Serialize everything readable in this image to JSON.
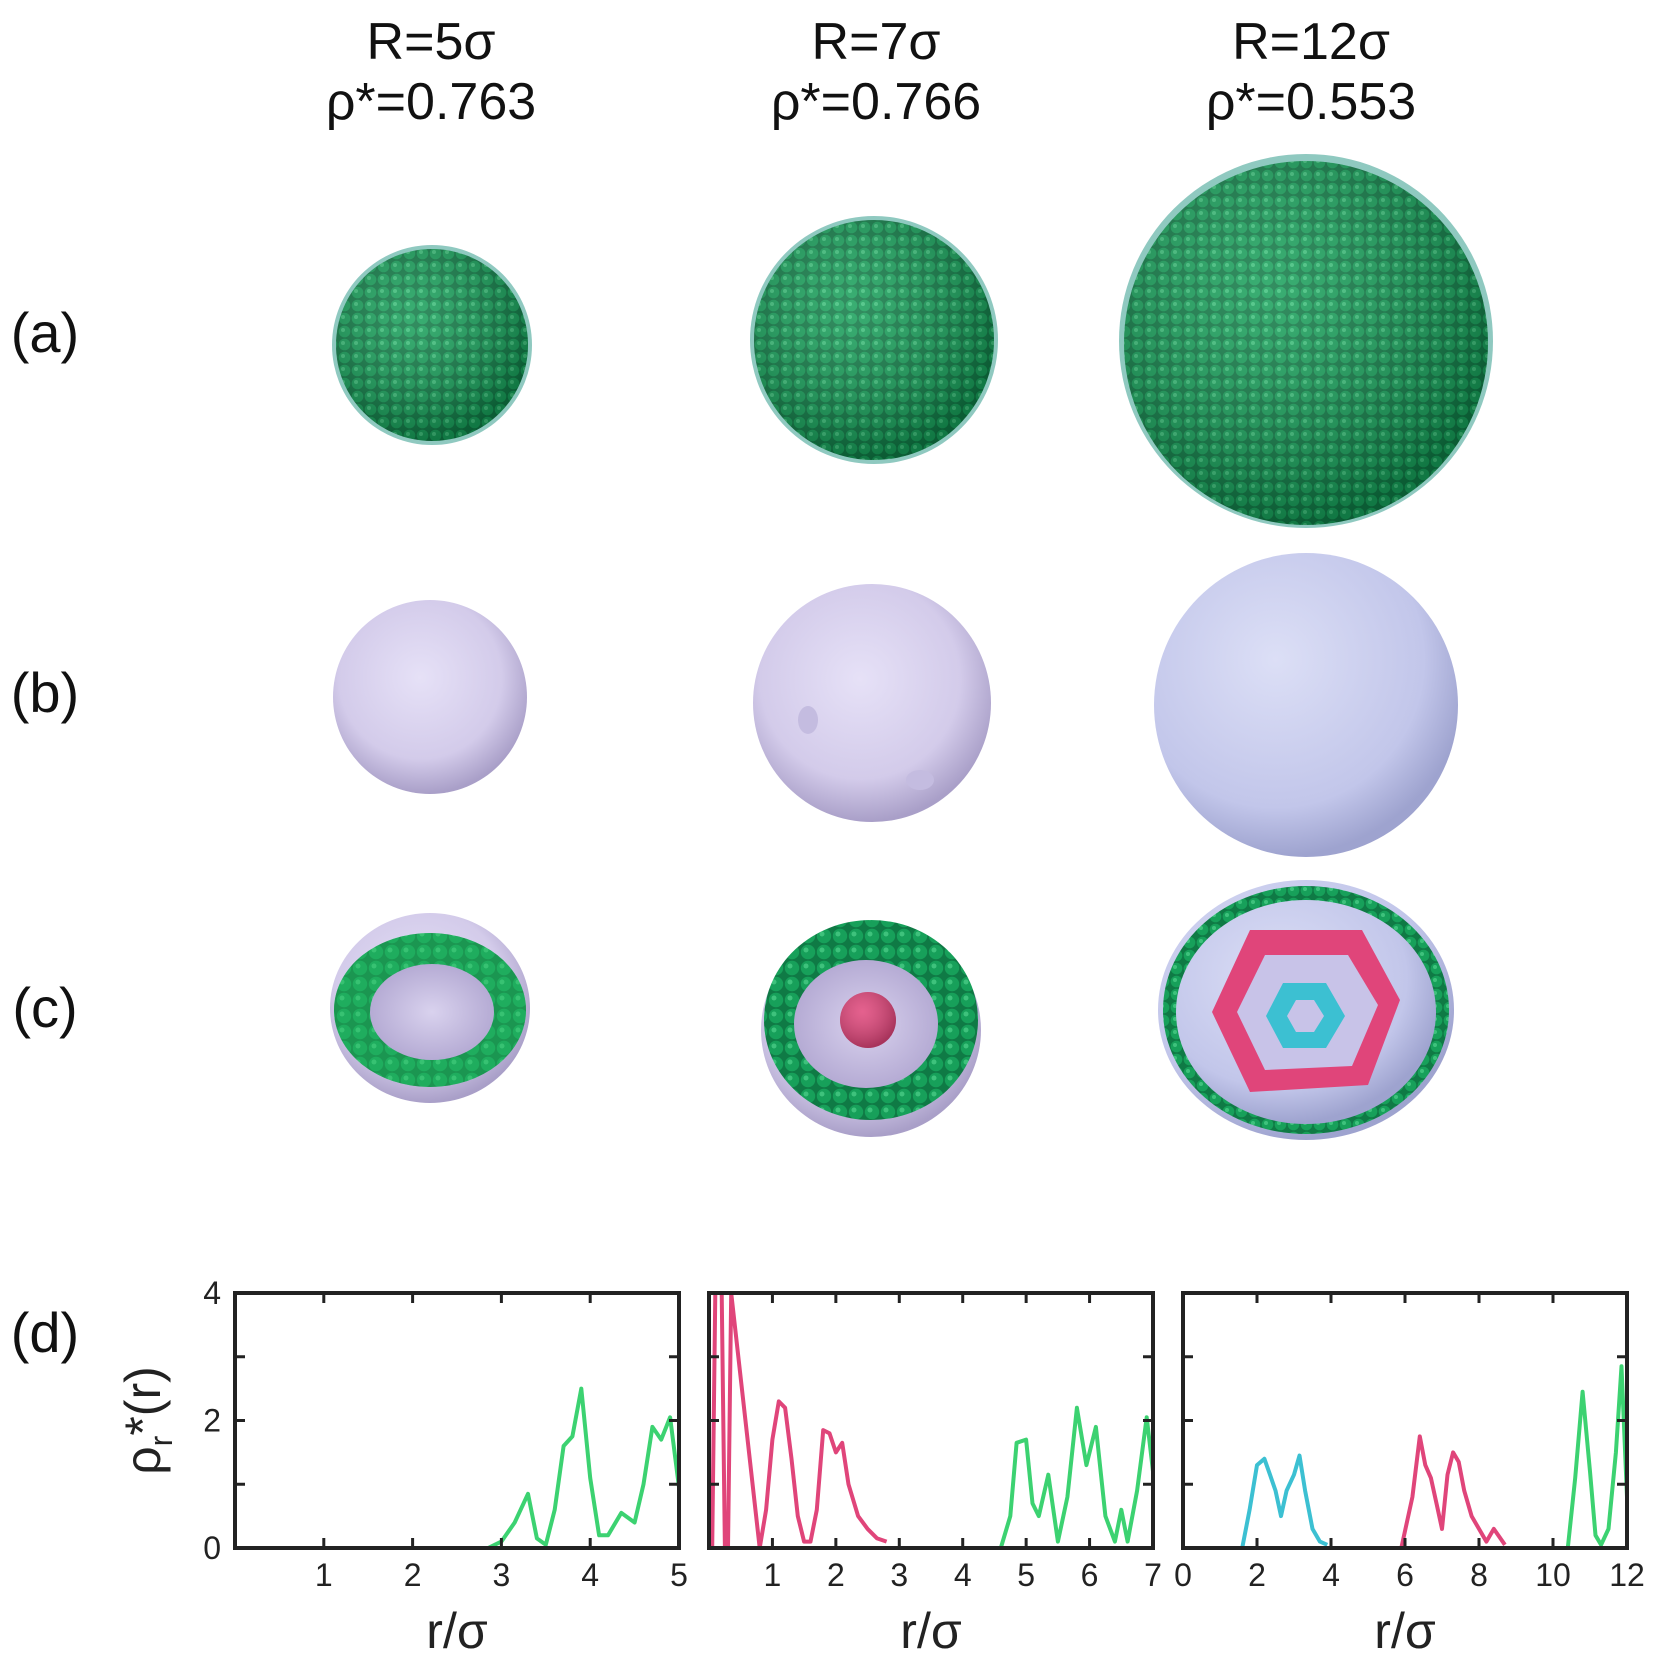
{
  "columns": [
    {
      "radius_label": "R=5σ",
      "density_label": "ρ*=0.763"
    },
    {
      "radius_label": "R=7σ",
      "density_label": "ρ*=0.766"
    },
    {
      "radius_label": "R=12σ",
      "density_label": "ρ*=0.553"
    }
  ],
  "row_labels": {
    "a": "(a)",
    "b": "(b)",
    "c": "(c)",
    "d": "(d)"
  },
  "colors": {
    "outer_shell": "#1db94f",
    "middle_shell": "#e0457a",
    "inner_shell": "#3cc0d2",
    "particle_green": "#15904f",
    "surface_lavender": "#d8d2ee",
    "surface_blue": "#c6cbec"
  },
  "chart_data": [
    {
      "type": "line",
      "xlabel": "r/σ",
      "ylabel_main": "ρ",
      "ylabel_sub": "r",
      "ylabel_suffix": "*(r)",
      "xlim": [
        0,
        5
      ],
      "ylim": [
        0,
        4
      ],
      "xticks": [
        "1",
        "2",
        "3",
        "4",
        "5"
      ],
      "yticks": [
        "0",
        "2",
        "4"
      ],
      "series": [
        {
          "color": "#3cd271",
          "x": [
            2.85,
            3.0,
            3.15,
            3.3,
            3.4,
            3.5,
            3.6,
            3.7,
            3.8,
            3.9,
            4.0,
            4.1,
            4.2,
            4.35,
            4.5,
            4.6,
            4.7,
            4.8,
            4.9,
            5.0
          ],
          "y": [
            0,
            0.1,
            0.4,
            0.85,
            0.15,
            0.05,
            0.6,
            1.6,
            1.75,
            2.5,
            1.1,
            0.2,
            0.2,
            0.55,
            0.4,
            1.0,
            1.9,
            1.7,
            2.05,
            0.95
          ]
        }
      ]
    },
    {
      "type": "line",
      "xlabel": "r/σ",
      "xlim": [
        0,
        7
      ],
      "ylim": [
        0,
        4
      ],
      "xticks": [
        "1",
        "2",
        "3",
        "4",
        "5",
        "6",
        "7"
      ],
      "series": [
        {
          "color": "#e0457a",
          "x": [
            0.05,
            0.1,
            0.2,
            0.25,
            0.3,
            0.35,
            0.8,
            0.9,
            1.0,
            1.1,
            1.2,
            1.3,
            1.4,
            1.5,
            1.6,
            1.7,
            1.8,
            1.9,
            2.0,
            2.1,
            2.2,
            2.35,
            2.5,
            2.65,
            2.8
          ],
          "y": [
            0,
            4,
            4,
            0,
            0,
            4,
            0,
            0.6,
            1.7,
            2.3,
            2.2,
            1.4,
            0.5,
            0.1,
            0.1,
            0.6,
            1.85,
            1.8,
            1.5,
            1.65,
            1.0,
            0.5,
            0.3,
            0.15,
            0.1
          ]
        },
        {
          "color": "#3cd271",
          "x": [
            4.6,
            4.75,
            4.85,
            5.0,
            5.1,
            5.2,
            5.35,
            5.5,
            5.65,
            5.8,
            5.95,
            6.1,
            6.25,
            6.4,
            6.5,
            6.6,
            6.75,
            6.9,
            7.0
          ],
          "y": [
            0,
            0.5,
            1.65,
            1.7,
            0.7,
            0.5,
            1.15,
            0.1,
            0.8,
            2.2,
            1.3,
            1.9,
            0.5,
            0.1,
            0.6,
            0.1,
            0.9,
            2.05,
            1.2
          ]
        }
      ]
    },
    {
      "type": "line",
      "xlabel": "r/σ",
      "xlim": [
        0,
        12
      ],
      "ylim": [
        0,
        4
      ],
      "xticks": [
        "0",
        "2",
        "4",
        "6",
        "8",
        "10",
        "12"
      ],
      "series": [
        {
          "color": "#3cc0d2",
          "x": [
            1.6,
            1.8,
            2.0,
            2.2,
            2.35,
            2.5,
            2.65,
            2.8,
            3.0,
            3.15,
            3.3,
            3.5,
            3.7,
            3.9
          ],
          "y": [
            0,
            0.6,
            1.3,
            1.4,
            1.15,
            0.9,
            0.5,
            0.9,
            1.15,
            1.45,
            0.9,
            0.3,
            0.1,
            0.05
          ]
        },
        {
          "color": "#e0457a",
          "x": [
            5.9,
            6.2,
            6.4,
            6.55,
            6.7,
            6.85,
            7.0,
            7.15,
            7.3,
            7.45,
            7.6,
            7.8,
            8.0,
            8.2,
            8.4,
            8.7
          ],
          "y": [
            0,
            0.8,
            1.75,
            1.3,
            1.1,
            0.7,
            0.3,
            1.15,
            1.5,
            1.35,
            0.9,
            0.5,
            0.3,
            0.1,
            0.3,
            0.05
          ]
        },
        {
          "color": "#3cd271",
          "x": [
            10.4,
            10.6,
            10.8,
            11.0,
            11.15,
            11.3,
            11.5,
            11.7,
            11.85,
            12.0
          ],
          "y": [
            0,
            1.1,
            2.45,
            1.2,
            0.2,
            0.05,
            0.3,
            1.5,
            2.85,
            0.8
          ]
        }
      ]
    }
  ]
}
